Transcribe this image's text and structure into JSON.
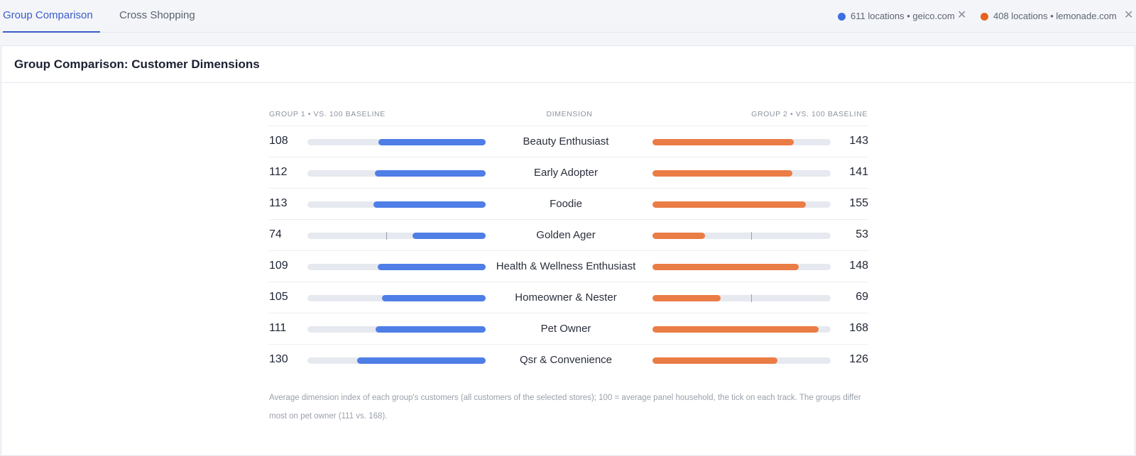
{
  "tabs": [
    {
      "label": "Group Comparison",
      "active": true
    },
    {
      "label": "Cross Shopping",
      "active": false
    }
  ],
  "groups": [
    {
      "label": "611 locations • geico.com",
      "color": "#3d6fe0"
    },
    {
      "label": "408 locations • lemonade.com",
      "color": "#e8631e"
    }
  ],
  "card": {
    "title": "Group Comparison: Customer Dimensions"
  },
  "columns": {
    "group1": "GROUP 1 • VS. 100 BASELINE",
    "dimension": "DIMENSION",
    "group2": "GROUP 2 • VS. 100 BASELINE"
  },
  "baseline": 100,
  "scale_max": 180,
  "rows": [
    {
      "dimension": "Beauty Enthusiast",
      "g1": "108",
      "g2": "143"
    },
    {
      "dimension": "Early Adopter",
      "g1": "112",
      "g2": "141"
    },
    {
      "dimension": "Foodie",
      "g1": "113",
      "g2": "155"
    },
    {
      "dimension": "Golden Ager",
      "g1": "74",
      "g2": "53"
    },
    {
      "dimension": "Health & Wellness Enthusiast",
      "g1": "109",
      "g2": "148"
    },
    {
      "dimension": "Homeowner & Nester",
      "g1": "105",
      "g2": "69"
    },
    {
      "dimension": "Pet Owner",
      "g1": "111",
      "g2": "168"
    },
    {
      "dimension": "Qsr & Convenience",
      "g1": "130",
      "g2": "126"
    }
  ],
  "footnote": "Average dimension index of each group's customers (all customers of the selected stores); 100 = average panel household, the tick on each track. The groups differ most on pet owner (111 vs. 168).",
  "icons": {
    "close": "close-icon",
    "dot": "legend-dot-icon"
  }
}
